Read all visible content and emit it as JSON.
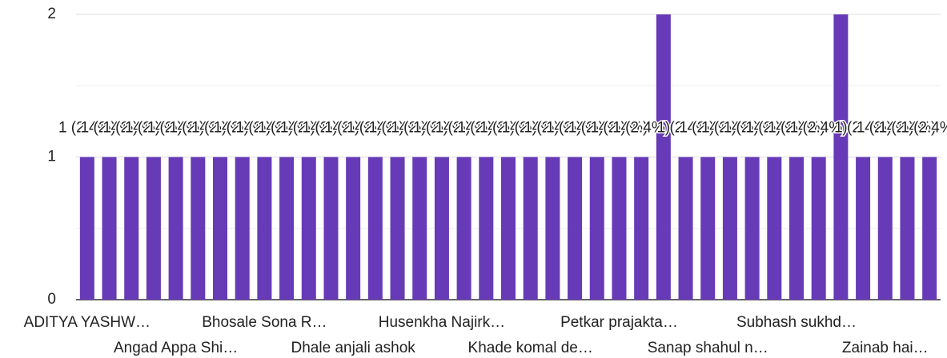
{
  "chart_data": {
    "type": "bar",
    "categories": [
      "ADITYA YASHW…",
      null,
      null,
      null,
      "Angad Appa Shi…",
      null,
      null,
      null,
      "Bhosale Sona R…",
      null,
      null,
      null,
      "Dhale anjali ashok",
      null,
      null,
      null,
      "Husenkha Najirk…",
      null,
      null,
      null,
      "Khade komal de…",
      null,
      null,
      null,
      "Petkar prajakta…",
      null,
      null,
      null,
      "Sanap shahul n…",
      null,
      null,
      null,
      "Subhash sukhd…",
      null,
      null,
      null,
      "Zainab hai…",
      null,
      null
    ],
    "values": [
      1,
      1,
      1,
      1,
      1,
      1,
      1,
      1,
      1,
      1,
      1,
      1,
      1,
      1,
      1,
      1,
      1,
      1,
      1,
      1,
      1,
      1,
      1,
      1,
      1,
      1,
      2,
      1,
      1,
      1,
      1,
      1,
      1,
      1,
      2,
      1,
      1,
      1,
      1
    ],
    "value_labels": [
      "1 (2.4%)",
      "1 (2.4%)",
      "1 (2.4%)",
      "1 (2.4%)",
      "1 (2.4%)",
      "1 (2.4%)",
      "1 (2.4%)",
      "1 (2.4%)",
      "1 (2.4%)",
      "1 (2.4%)",
      "1 (2.4%)",
      "1 (2.4%)",
      "1 (2.4%)",
      "1 (2.4%)",
      "1 (2.4%)",
      "1 (2.4%)",
      "1 (2.4%)",
      "1 (2.4%)",
      "1 (2.4%)",
      "1 (2.4%)",
      "1 (2.4%)",
      "1 (2.4%)",
      "1 (2.4%)",
      "1 (2.4%)",
      "1 (2.4%)",
      "1 (2.4%)",
      "2 (4.9%)",
      "1 (2.4%)",
      "1 (2.4%)",
      "1 (2.4%)",
      "1 (2.4%)",
      "1 (2.4%)",
      "1 (2.4%)",
      "1 (2.4%)",
      "2 (4.9%)",
      "1 (2.4%)",
      "1 (2.4%)",
      "1 (2.4%)",
      "1 (2.4%)"
    ],
    "color": "#673ab7",
    "ylim": [
      0,
      2
    ],
    "yticks": [
      0,
      1,
      2
    ],
    "minor_yticks": [
      0.5,
      1.5
    ],
    "grid": true
  }
}
